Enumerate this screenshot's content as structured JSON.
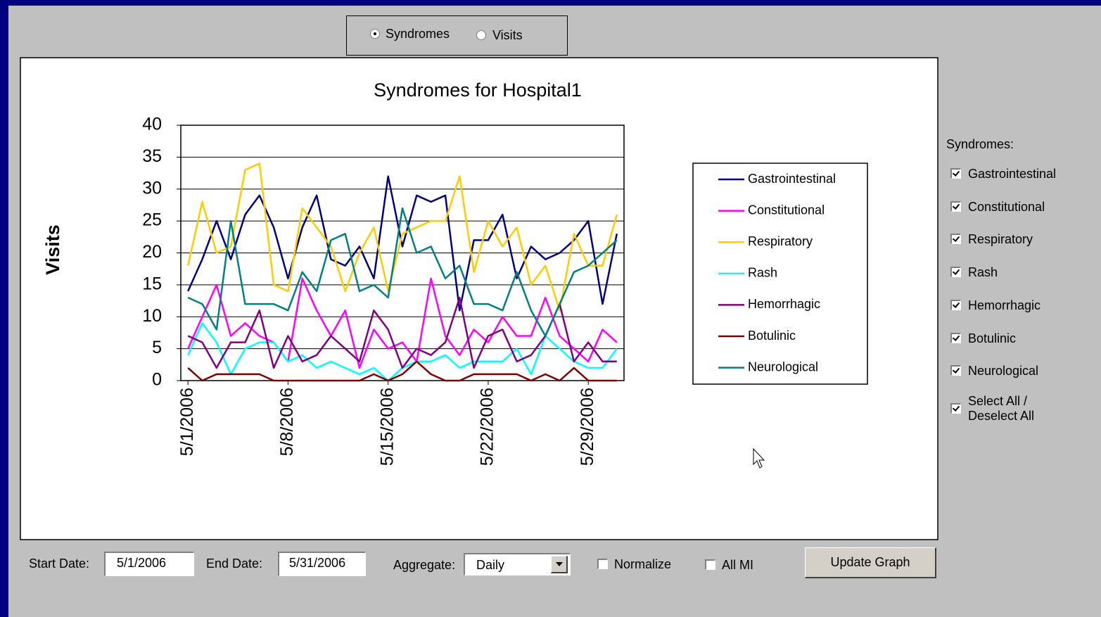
{
  "view_toggle": {
    "options": [
      "Syndromes",
      "Visits"
    ],
    "selected": 0
  },
  "chart_data": {
    "type": "line",
    "title": "Syndromes for Hospital1",
    "y_label": "Visits",
    "categories": [
      "5/1/2006",
      null,
      null,
      null,
      null,
      null,
      null,
      "5/8/2006",
      null,
      null,
      null,
      null,
      null,
      null,
      "5/15/2006",
      null,
      null,
      null,
      null,
      null,
      null,
      "5/22/2006",
      null,
      null,
      null,
      null,
      null,
      null,
      "5/29/2006",
      null,
      null
    ],
    "ylim": [
      0,
      40
    ],
    "yticks": [
      0,
      5,
      10,
      15,
      20,
      25,
      30,
      35,
      40
    ],
    "grid": true,
    "legend": "right",
    "series": [
      {
        "name": "Gastrointestinal",
        "color": "#000080",
        "values": [
          14,
          19,
          25,
          19,
          26,
          29,
          24,
          16,
          24,
          29,
          19,
          18,
          21,
          16,
          32,
          21,
          29,
          28,
          29,
          11,
          22,
          22,
          26,
          16,
          21,
          19,
          20,
          22,
          25,
          12,
          23
        ]
      },
      {
        "name": "Constitutional",
        "color": "#ff00ff",
        "values": [
          5,
          10,
          15,
          7,
          9,
          7,
          6,
          3,
          16,
          11,
          7,
          11,
          2,
          8,
          5,
          6,
          3,
          16,
          7,
          4,
          8,
          6,
          10,
          7,
          7,
          13,
          7,
          5,
          3,
          8,
          6
        ]
      },
      {
        "name": "Respiratory",
        "color": "#ffcc00",
        "values": [
          18,
          28,
          20,
          21,
          33,
          34,
          15,
          14,
          27,
          24,
          21,
          14,
          20,
          24,
          14,
          23,
          24,
          25,
          25,
          32,
          17,
          25,
          21,
          24,
          15,
          18,
          11,
          23,
          18,
          18,
          26
        ]
      },
      {
        "name": "Rash",
        "color": "#00ffff",
        "values": [
          4,
          9,
          6,
          1,
          5,
          6,
          6,
          3,
          4,
          2,
          3,
          2,
          1,
          2,
          0,
          2,
          3,
          3,
          4,
          2,
          3,
          3,
          3,
          5,
          1,
          7,
          5,
          3,
          2,
          2,
          5
        ]
      },
      {
        "name": "Hemorrhagic",
        "color": "#800080",
        "values": [
          7,
          6,
          2,
          6,
          6,
          11,
          2,
          7,
          3,
          4,
          7,
          5,
          3,
          11,
          8,
          2,
          5,
          4,
          6,
          13,
          2,
          7,
          8,
          3,
          4,
          7,
          12,
          3,
          6,
          3,
          3
        ]
      },
      {
        "name": "Botulinic",
        "color": "#800000",
        "values": [
          2,
          0,
          1,
          1,
          1,
          1,
          0,
          0,
          0,
          0,
          0,
          0,
          0,
          1,
          0,
          1,
          3,
          1,
          0,
          0,
          1,
          1,
          1,
          1,
          0,
          1,
          0,
          2,
          0,
          0,
          0
        ]
      },
      {
        "name": "Neurological",
        "color": "#008080",
        "values": [
          13,
          12,
          8,
          25,
          12,
          12,
          12,
          11,
          17,
          14,
          22,
          23,
          14,
          15,
          13,
          27,
          20,
          21,
          16,
          18,
          12,
          12,
          11,
          17,
          11,
          7,
          12,
          17,
          18,
          20,
          22
        ]
      }
    ]
  },
  "sidebar": {
    "title": "Syndromes:",
    "items": [
      {
        "label": "Gastrointestinal",
        "checked": true
      },
      {
        "label": "Constitutional",
        "checked": true
      },
      {
        "label": "Respiratory",
        "checked": true
      },
      {
        "label": "Rash",
        "checked": true
      },
      {
        "label": "Hemorrhagic",
        "checked": true
      },
      {
        "label": "Botulinic",
        "checked": true
      },
      {
        "label": "Neurological",
        "checked": true
      },
      {
        "label": "Select All / Deselect All",
        "checked": true
      }
    ]
  },
  "controls": {
    "start_label": "Start Date:",
    "start_value": "5/1/2006",
    "end_label": "End Date:",
    "end_value": "5/31/2006",
    "aggregate_label": "Aggregate:",
    "aggregate_value": "Daily",
    "normalize": {
      "label": "Normalize",
      "checked": false
    },
    "all_mi": {
      "label": "All MI",
      "checked": false
    },
    "button": "Update Graph"
  }
}
